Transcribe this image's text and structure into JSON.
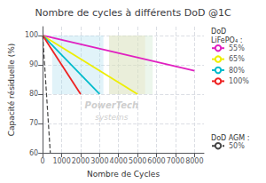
{
  "chart_data": {
    "type": "line",
    "title": "Nombre de cycles à différents DoD @1C",
    "xlabel": "Nombre de Cycles",
    "ylabel": "Capacité résiduelle (%)",
    "xlim": [
      0,
      8500
    ],
    "ylim": [
      60,
      103
    ],
    "xticks": [
      0,
      1000,
      2000,
      3000,
      4000,
      5000,
      6000,
      7000,
      8000
    ],
    "yticks": [
      60,
      70,
      80,
      90,
      100
    ],
    "grid": true,
    "series": [
      {
        "name": "55%",
        "color": "#e020c0",
        "line_style": "solid",
        "x": [
          0,
          8000
        ],
        "values": [
          100,
          88
        ]
      },
      {
        "name": "65%",
        "color": "#eeee00",
        "line_style": "solid",
        "x": [
          0,
          5000
        ],
        "values": [
          100,
          80
        ]
      },
      {
        "name": "80%",
        "color": "#00bbcc",
        "line_style": "solid",
        "x": [
          0,
          3000
        ],
        "values": [
          100,
          80
        ]
      },
      {
        "name": "100%",
        "color": "#ee2222",
        "line_style": "solid",
        "x": [
          0,
          2000
        ],
        "values": [
          100,
          80
        ]
      },
      {
        "name": "50%",
        "color": "#444444",
        "line_style": "dashed",
        "x": [
          0,
          400
        ],
        "values": [
          100,
          60
        ]
      }
    ],
    "legend_groups": [
      {
        "title": "DoD\nLiFePO₄ :",
        "series": [
          "55%",
          "65%",
          "80%",
          "100%"
        ],
        "legend": "upper right"
      },
      {
        "title": "DoD AGM :",
        "series": [
          "50%"
        ],
        "legend": "lower right"
      }
    ],
    "regions": [
      {
        "x0": 500,
        "x1": 3200,
        "y0": 80,
        "y1": 100,
        "color": "#aaddee"
      },
      {
        "x0": 3500,
        "x1": 5400,
        "y0": 80,
        "y1": 100,
        "color": "#f5deb3"
      },
      {
        "x0": 3500,
        "x1": 5800,
        "y0": 80,
        "y1": 100,
        "color": "#c8e6c9"
      }
    ],
    "annotations": [
      {
        "text": "PowerTech",
        "color": "#c8c8c8"
      },
      {
        "text": "systems",
        "color": "#c8c8c8"
      }
    ]
  }
}
